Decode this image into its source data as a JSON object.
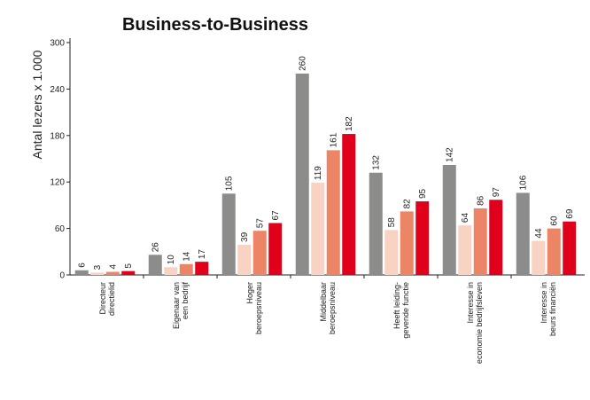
{
  "chart_data": {
    "type": "bar",
    "title": "Business-to-Business",
    "ylabel": "Antal lezers x 1.000",
    "xlabel": "",
    "ylim": [
      0,
      300
    ],
    "yticks": [
      "0",
      "60",
      "120",
      "180",
      "240",
      "300"
    ],
    "grid": false,
    "legend": "none",
    "categories": [
      [
        "Directeur",
        "directielid"
      ],
      [
        "Eigenaar van",
        "een bedrijf"
      ],
      [
        "Hoger",
        "beroepsniveau"
      ],
      [
        "Middelbaar",
        "beroepsniveau"
      ],
      [
        "Heeft leiding-",
        "gevende functie"
      ],
      [
        "Interesse in",
        "economie bedrijfsleven"
      ],
      [
        "Interesse in",
        "beurs financiën"
      ]
    ],
    "series": [
      {
        "color": "#8c8c8a",
        "values": [
          6,
          26,
          105,
          260,
          132,
          142,
          106
        ]
      },
      {
        "color": "#f8d3c3",
        "values": [
          3,
          10,
          39,
          119,
          58,
          64,
          44
        ]
      },
      {
        "color": "#ec8466",
        "values": [
          4,
          14,
          57,
          161,
          82,
          86,
          60
        ]
      },
      {
        "color": "#e0001b",
        "values": [
          5,
          17,
          67,
          182,
          95,
          97,
          69
        ]
      }
    ]
  }
}
